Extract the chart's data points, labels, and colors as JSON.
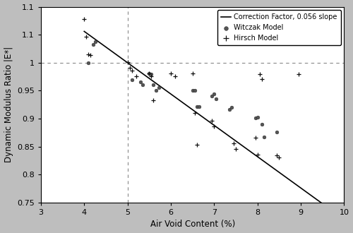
{
  "xlabel": "Air Void Content (%)",
  "ylabel": "Dynamic Modulus Ratio |E*|",
  "xlim": [
    3,
    10
  ],
  "ylim": [
    0.75,
    1.1
  ],
  "xticks": [
    3,
    4,
    5,
    6,
    7,
    8,
    9,
    10
  ],
  "yticks": [
    0.75,
    0.8,
    0.85,
    0.9,
    0.95,
    1.0,
    1.05,
    1.1
  ],
  "vline_x": 5.0,
  "hline_y": 1.0,
  "regression_slope": -0.056,
  "regression_intercept": 1.28,
  "line_x_start": 4.0,
  "line_x_end": 9.5,
  "bg_color": "#bebebe",
  "plot_bg_color": "#ffffff",
  "witczak_color": "#555555",
  "hirsch_color": "#111111",
  "line_color": "#000000",
  "witczak_points": [
    [
      4.1,
      1.0
    ],
    [
      4.2,
      1.032
    ],
    [
      4.25,
      1.038
    ],
    [
      5.1,
      0.97
    ],
    [
      5.3,
      0.966
    ],
    [
      5.35,
      0.961
    ],
    [
      5.5,
      0.981
    ],
    [
      5.55,
      0.979
    ],
    [
      5.6,
      0.961
    ],
    [
      5.65,
      0.951
    ],
    [
      5.72,
      0.956
    ],
    [
      6.5,
      0.951
    ],
    [
      6.55,
      0.951
    ],
    [
      6.6,
      0.922
    ],
    [
      6.65,
      0.922
    ],
    [
      6.95,
      0.941
    ],
    [
      7.0,
      0.944
    ],
    [
      7.05,
      0.935
    ],
    [
      7.35,
      0.917
    ],
    [
      7.4,
      0.92
    ],
    [
      7.95,
      0.901
    ],
    [
      8.0,
      0.902
    ],
    [
      8.1,
      0.89
    ],
    [
      8.15,
      0.867
    ],
    [
      8.45,
      0.876
    ]
  ],
  "hirsch_points": [
    [
      4.0,
      1.078
    ],
    [
      4.05,
      1.046
    ],
    [
      4.1,
      1.015
    ],
    [
      4.15,
      1.013
    ],
    [
      5.0,
      1.001
    ],
    [
      5.05,
      0.991
    ],
    [
      5.1,
      0.986
    ],
    [
      5.2,
      0.976
    ],
    [
      5.5,
      0.981
    ],
    [
      5.55,
      0.976
    ],
    [
      5.6,
      0.933
    ],
    [
      6.0,
      0.981
    ],
    [
      6.1,
      0.976
    ],
    [
      6.5,
      0.981
    ],
    [
      6.55,
      0.91
    ],
    [
      6.6,
      0.853
    ],
    [
      6.95,
      0.896
    ],
    [
      7.0,
      0.886
    ],
    [
      7.45,
      0.856
    ],
    [
      7.5,
      0.846
    ],
    [
      7.95,
      0.866
    ],
    [
      8.0,
      0.836
    ],
    [
      8.05,
      0.979
    ],
    [
      8.1,
      0.971
    ],
    [
      8.45,
      0.834
    ],
    [
      8.5,
      0.831
    ],
    [
      8.95,
      0.979
    ]
  ],
  "legend_witczak": "Witczak Model",
  "legend_hirsch": "Hirsch Model",
  "legend_line": "Correction Factor, 0.056 slope"
}
